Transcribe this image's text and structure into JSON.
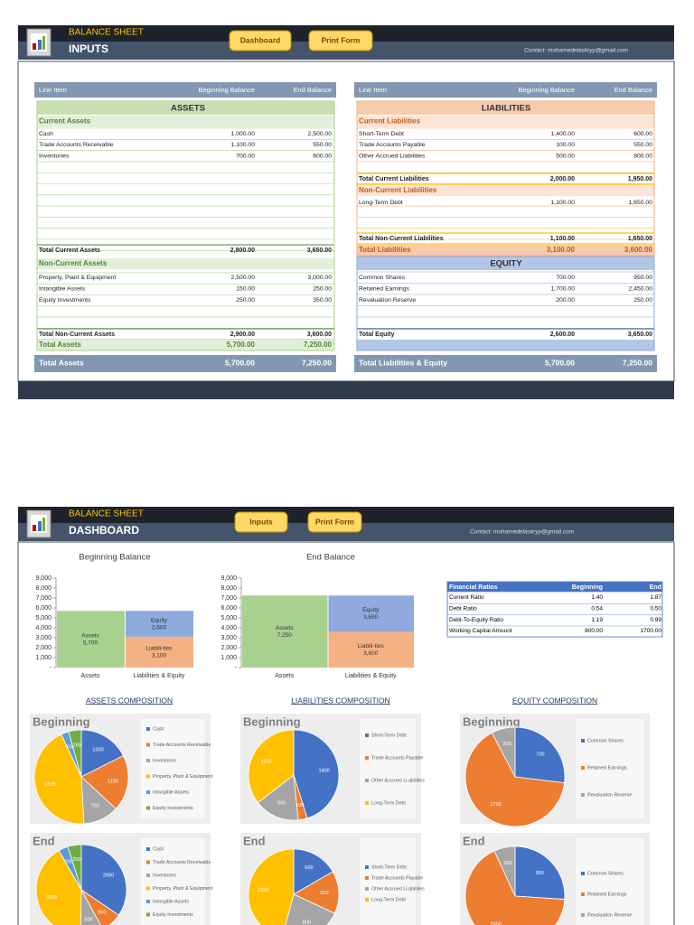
{
  "inputs": {
    "header": {
      "title": "BALANCE SHEET",
      "subtitle": "INPUTS",
      "buttons": [
        "Dashboard",
        "Print Form"
      ],
      "contact": "Contact: mohamedelaskryy@gmail.com"
    },
    "assets": {
      "columns": [
        "Line Item",
        "Beginning Balance",
        "End Balance"
      ],
      "title": "ASSETS",
      "current_heading": "Current Assets",
      "current_rows": [
        [
          "Cash",
          "1,000.00",
          "2,500.00"
        ],
        [
          "Trade Accounts Receivable",
          "1,100.00",
          "550.00"
        ],
        [
          "Inventories",
          "700.00",
          "600.00"
        ]
      ],
      "current_total": [
        "Total Current Assets",
        "2,800.00",
        "3,650.00"
      ],
      "noncurrent_heading": "Non-Current Assets",
      "noncurrent_rows": [
        [
          "Property, Plant & Equipment",
          "2,500.00",
          "3,000.00"
        ],
        [
          "Intangible Assets",
          "150.00",
          "250.00"
        ],
        [
          "Equity Investments",
          "250.00",
          "350.00"
        ]
      ],
      "noncurrent_total": [
        "Total Non-Current Assets",
        "2,900.00",
        "3,600.00"
      ],
      "total": [
        "Total Assets",
        "5,700.00",
        "7,250.00"
      ],
      "footer": [
        "Total Assets",
        "5,700.00",
        "7,250.00"
      ]
    },
    "liabilities": {
      "columns": [
        "Line Item",
        "Beginning Balance",
        "End Balance"
      ],
      "title": "LIABILITIES",
      "current_heading": "Current Liabilities",
      "current_rows": [
        [
          "Short-Term Debt",
          "1,400.00",
          "600.00"
        ],
        [
          "Trade Accounts Payable",
          "100.00",
          "550.00"
        ],
        [
          "Other Accrued Liabilities",
          "500.00",
          "800.00"
        ]
      ],
      "current_total": [
        "Total Current Liabilities",
        "2,000.00",
        "1,950.00"
      ],
      "noncurrent_heading": "Non-Current Liabilities",
      "noncurrent_rows": [
        [
          "Long-Term Debt",
          "1,100.00",
          "1,650.00"
        ]
      ],
      "noncurrent_total": [
        "Total Non-Current Liabilities",
        "1,100.00",
        "1,650.00"
      ],
      "total": [
        "Total Liabilities",
        "3,100.00",
        "3,600.00"
      ],
      "equity_title": "EQUITY",
      "equity_rows": [
        [
          "Common Shares",
          "700.00",
          "950.00"
        ],
        [
          "Retained Earnings",
          "1,700.00",
          "2,450.00"
        ],
        [
          "Revaluation Reserve",
          "200.00",
          "250.00"
        ]
      ],
      "equity_total": [
        "Total Equity",
        "2,600.00",
        "3,650.00"
      ],
      "footer": [
        "Total Liabilities & Equity",
        "5,700.00",
        "7,250.00"
      ]
    }
  },
  "dashboard": {
    "header": {
      "title": "BALANCE SHEET",
      "subtitle": "DASHBOARD",
      "buttons": [
        "Inputs",
        "Print Form"
      ],
      "contact": "Contact: mohamedelaskryy@gmail.com"
    },
    "ratios": {
      "columns": [
        "Financial Ratios",
        "Beginning",
        "End"
      ],
      "rows": [
        [
          "Current Ratio",
          "1.40",
          "1.87"
        ],
        [
          "Debt Ratio",
          "0.54",
          "0.50"
        ],
        [
          "Debt-To-Equity Ratio",
          "1.19",
          "0.99"
        ],
        [
          "Working Capital Amount",
          "800.00",
          "1700.00"
        ]
      ]
    },
    "composition_titles": [
      "ASSETS COMPOSITION",
      "LIABILITIES COMPOSITION",
      "EQUITY COMPOSITION"
    ]
  },
  "chart_data": [
    {
      "type": "bar",
      "stacked": true,
      "title": "Beginning Balance",
      "categories": [
        "Assets",
        "Liabilities & Equity"
      ],
      "series": [
        {
          "name": "Assets",
          "color": "#a9d18e",
          "values": [
            5700,
            null
          ],
          "value_labels": [
            "5,700",
            null
          ]
        },
        {
          "name": "Liabili-ties",
          "color": "#f4b183",
          "values": [
            null,
            3100
          ],
          "value_labels": [
            null,
            "3,100"
          ]
        },
        {
          "name": "Equity",
          "color": "#8faadc",
          "values": [
            null,
            2600
          ],
          "value_labels": [
            null,
            "2,600"
          ]
        }
      ],
      "ylim": [
        0,
        9000
      ],
      "yticks": [
        {
          "value": 0,
          "label": "-"
        },
        {
          "value": 1000,
          "label": "1,000"
        },
        {
          "value": 2000,
          "label": "2,000"
        },
        {
          "value": 3000,
          "label": "3,000"
        },
        {
          "value": 4000,
          "label": "4,000"
        },
        {
          "value": 5000,
          "label": "5,000"
        },
        {
          "value": 6000,
          "label": "6,000"
        },
        {
          "value": 7000,
          "label": "7,000"
        },
        {
          "value": 8000,
          "label": "8,000"
        },
        {
          "value": 9000,
          "label": "9,000"
        }
      ]
    },
    {
      "type": "bar",
      "stacked": true,
      "title": "End Balance",
      "categories": [
        "Assets",
        "Liabilities & Equity"
      ],
      "series": [
        {
          "name": "Assets",
          "color": "#a9d18e",
          "values": [
            7250,
            null
          ],
          "value_labels": [
            "7,250",
            null
          ]
        },
        {
          "name": "Liabili-ties",
          "color": "#f4b183",
          "values": [
            null,
            3600
          ],
          "value_labels": [
            null,
            "3,600"
          ]
        },
        {
          "name": "Equity",
          "color": "#8faadc",
          "values": [
            null,
            3650
          ],
          "value_labels": [
            null,
            "3,650"
          ]
        }
      ],
      "ylim": [
        0,
        9000
      ],
      "yticks": [
        {
          "value": 0,
          "label": "-"
        },
        {
          "value": 1000,
          "label": "1,000"
        },
        {
          "value": 2000,
          "label": "2,000"
        },
        {
          "value": 3000,
          "label": "3,000"
        },
        {
          "value": 4000,
          "label": "4,000"
        },
        {
          "value": 5000,
          "label": "5,000"
        },
        {
          "value": 6000,
          "label": "6,000"
        },
        {
          "value": 7000,
          "label": "7,000"
        },
        {
          "value": 8000,
          "label": "8,000"
        },
        {
          "value": 9000,
          "label": "9,000"
        }
      ]
    },
    {
      "type": "pie",
      "title": "Beginning",
      "categories": [
        "Cash",
        "Trade Accounts Receivable",
        "Inventories",
        "Property, Plant & Equipment",
        "Intangible Assets",
        "Equity Investments"
      ],
      "values": [
        1000,
        1100,
        700,
        2500,
        150,
        250
      ],
      "colors": [
        "#4472c4",
        "#ed7d31",
        "#a5a5a5",
        "#ffc000",
        "#5b9bd5",
        "#70ad47"
      ]
    },
    {
      "type": "pie",
      "title": "End",
      "categories": [
        "Cash",
        "Trade Accounts Receivable",
        "Inventories",
        "Property, Plant & Equipment",
        "Intangible Assets",
        "Equity Investments"
      ],
      "values": [
        2500,
        550,
        600,
        3000,
        250,
        350
      ],
      "colors": [
        "#4472c4",
        "#ed7d31",
        "#a5a5a5",
        "#ffc000",
        "#5b9bd5",
        "#70ad47"
      ]
    },
    {
      "type": "pie",
      "title": "Beginning",
      "categories": [
        "Short-Term Debt",
        "Trade Accounts Payable",
        "Other Accrued Li-abilities",
        "Long-Term Debt"
      ],
      "values": [
        1400,
        100,
        500,
        1100
      ],
      "colors": [
        "#4472c4",
        "#ed7d31",
        "#a5a5a5",
        "#ffc000"
      ]
    },
    {
      "type": "pie",
      "title": "End",
      "categories": [
        "Short-Term Debt",
        "Trade Accounts Payable",
        "Other Accrued Li-abilities",
        "Long-Term Debt"
      ],
      "values": [
        600,
        550,
        800,
        1650
      ],
      "colors": [
        "#4472c4",
        "#ed7d31",
        "#a5a5a5",
        "#ffc000"
      ]
    },
    {
      "type": "pie",
      "title": "Beginning",
      "categories": [
        "Common Shares",
        "Retained Earnings",
        "Revaluation Reserve"
      ],
      "values": [
        700,
        1700,
        200
      ],
      "colors": [
        "#4472c4",
        "#ed7d31",
        "#a5a5a5"
      ]
    },
    {
      "type": "pie",
      "title": "End",
      "categories": [
        "Common Shares",
        "Retained Earnings",
        "Revaluation Reserve"
      ],
      "values": [
        950,
        2450,
        250
      ],
      "colors": [
        "#4472c4",
        "#ed7d31",
        "#a5a5a5"
      ]
    }
  ]
}
